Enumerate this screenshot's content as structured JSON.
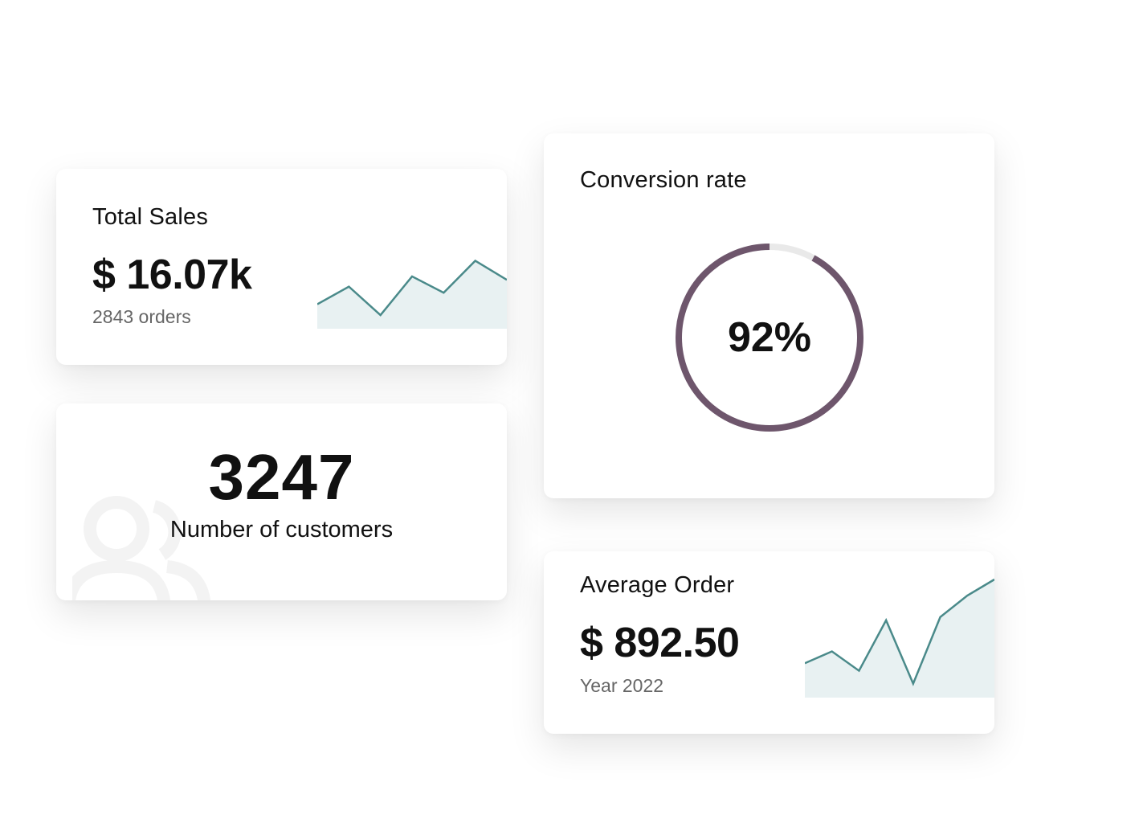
{
  "total_sales": {
    "title": "Total Sales",
    "value": "$ 16.07k",
    "subtitle": "2843 orders",
    "sparkline": [
      0.36,
      0.62,
      0.2,
      0.77,
      0.53,
      1.0,
      0.72
    ],
    "line_color": "#4a8a8a",
    "fill_color": "#e8f1f2"
  },
  "customers": {
    "value": "3247",
    "label": "Number of customers",
    "icon": "users-icon"
  },
  "conversion": {
    "title": "Conversion rate",
    "value": "92%",
    "fraction": 0.92,
    "ring_color": "#6e566c",
    "track_color": "#e9e9e9"
  },
  "average_order": {
    "title": "Average Order",
    "value": "$ 892.50",
    "subtitle": "Year 2022",
    "sparkline": [
      0.07,
      0.18,
      0.0,
      0.47,
      -0.12,
      0.5,
      0.7,
      0.85
    ],
    "line_color": "#4a8a8a",
    "fill_color": "#e8f1f2"
  }
}
